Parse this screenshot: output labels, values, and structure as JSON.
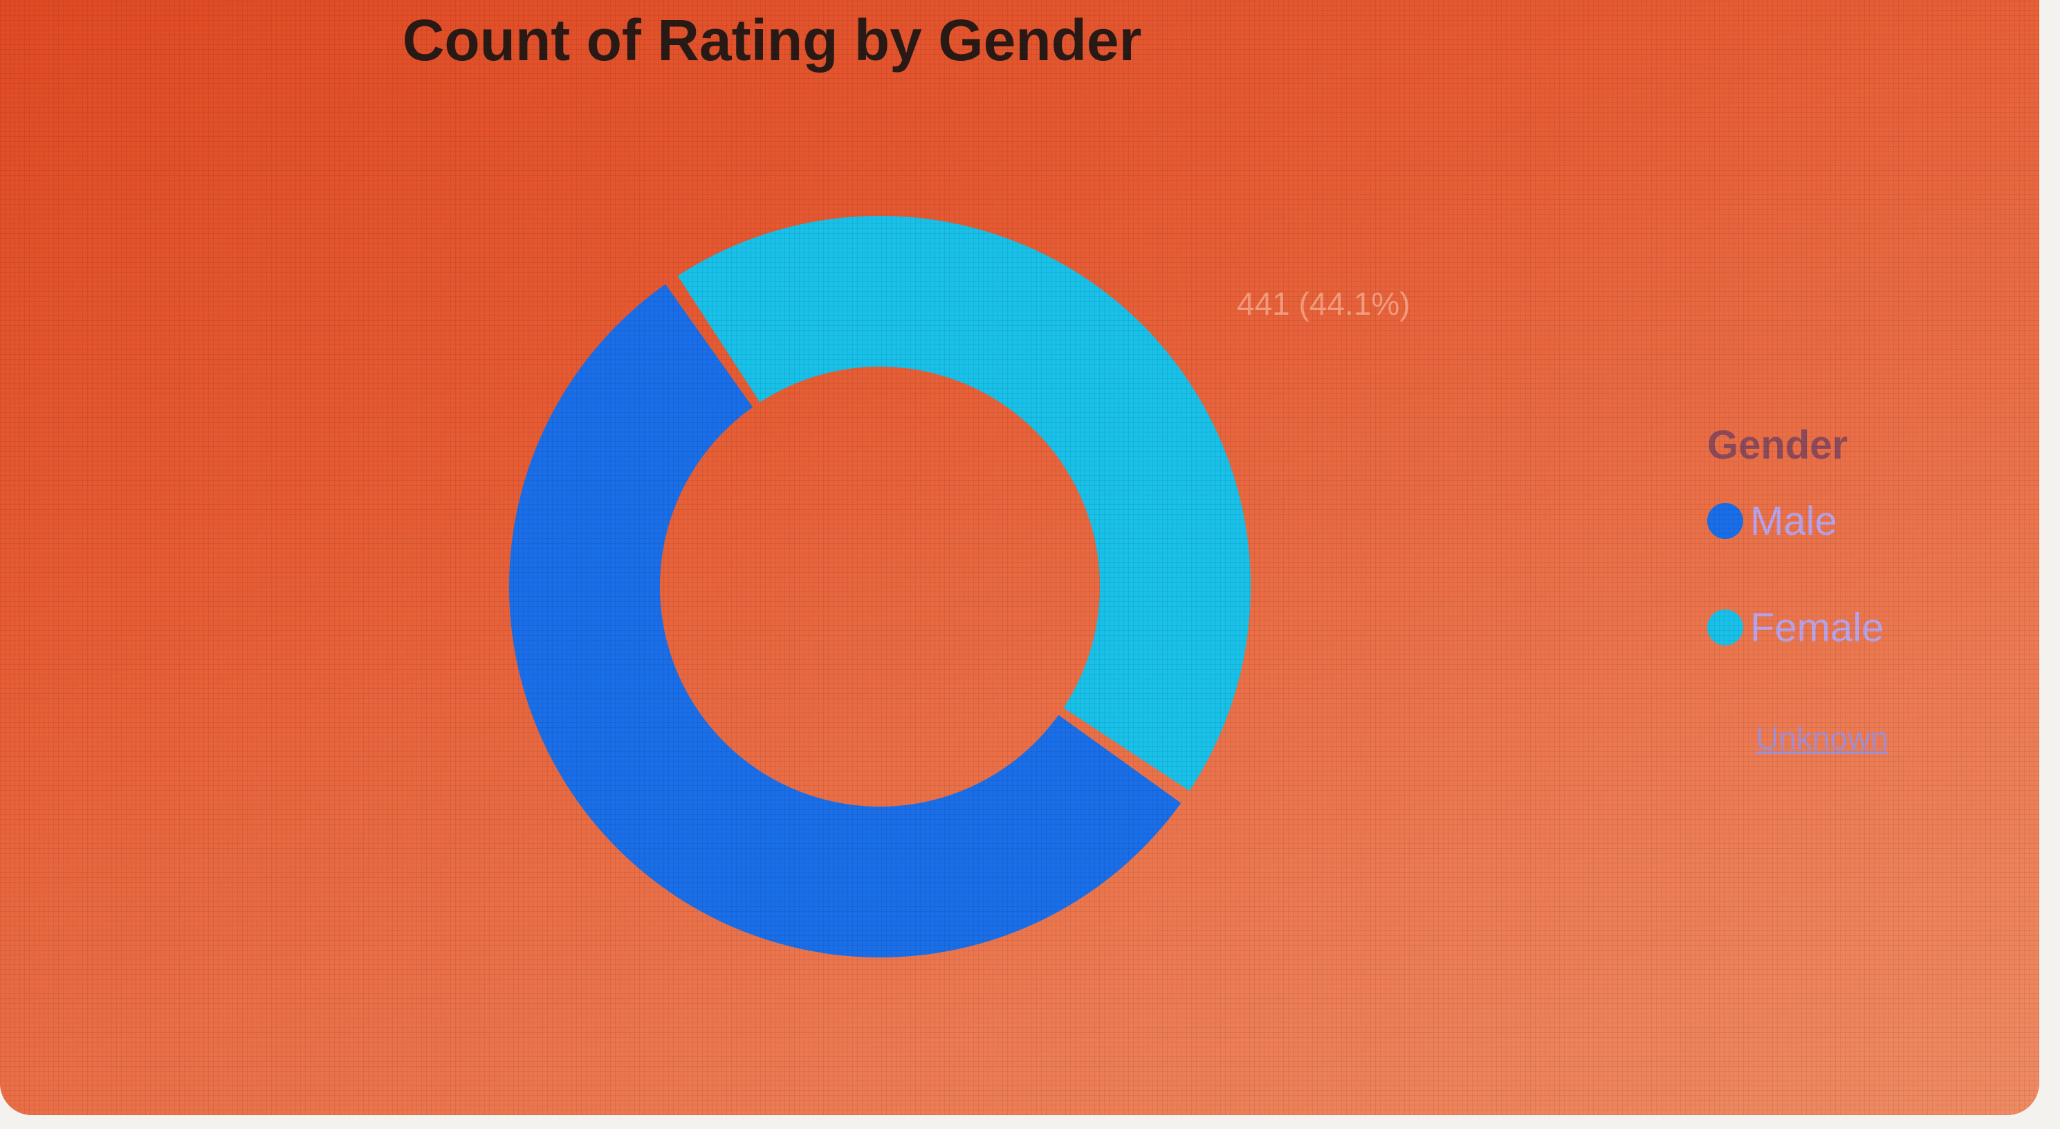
{
  "chart_data": {
    "type": "pie",
    "title": "Count of Rating by Gender",
    "legend_title": "Gender",
    "legend_placement": "right",
    "categories": [
      "Male",
      "Female"
    ],
    "values": [
      559,
      441
    ],
    "colors": [
      "#1a6ee8",
      "#19c0e8"
    ],
    "slice_labels": [
      "",
      "441 (44.1%)"
    ],
    "donut": true,
    "show_more_label": "Unknown"
  }
}
